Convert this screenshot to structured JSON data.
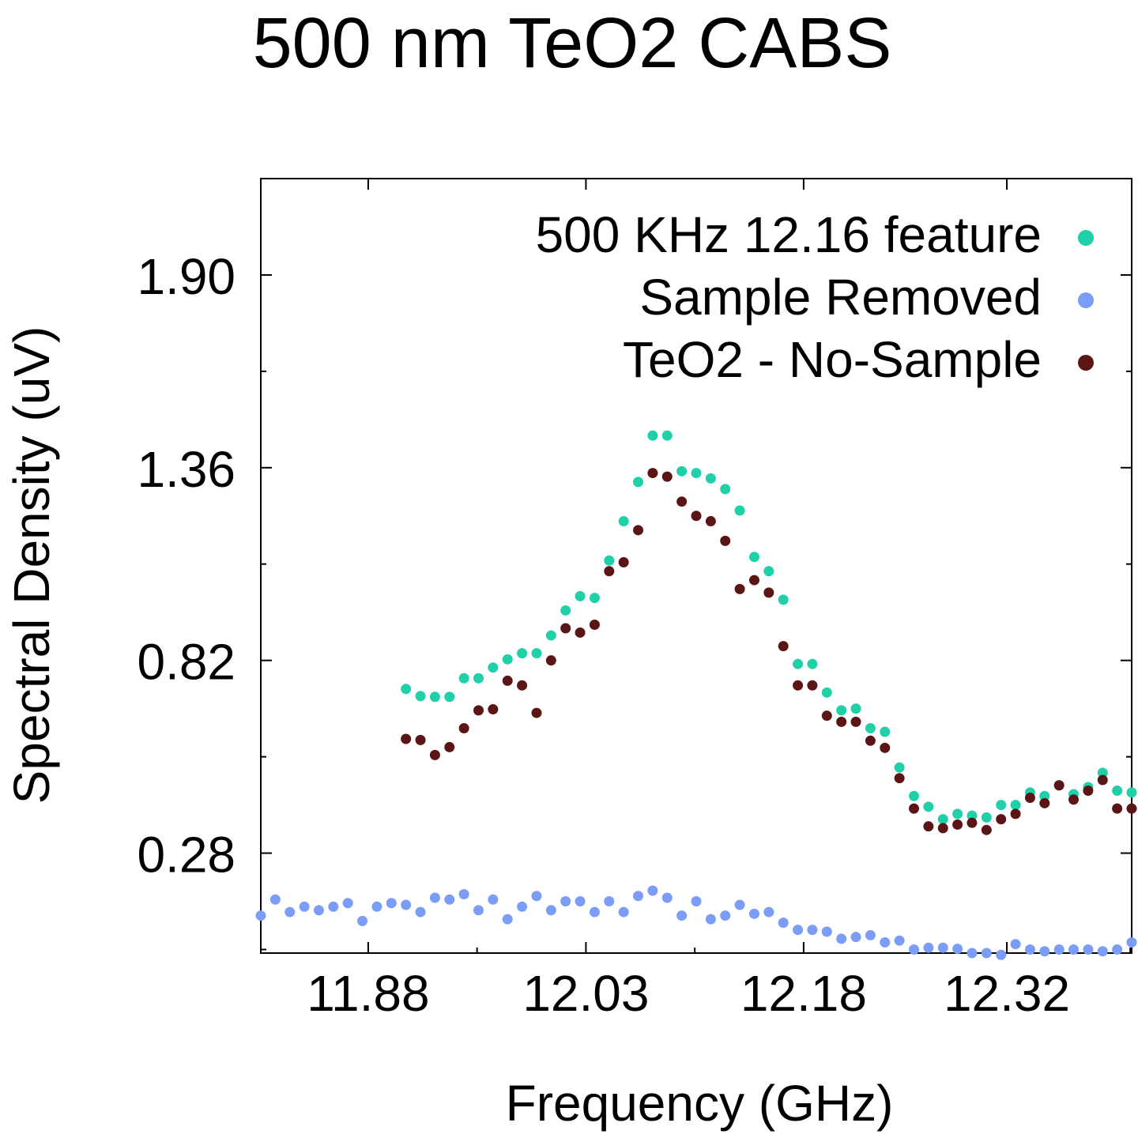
{
  "chart_data": {
    "type": "scatter",
    "title": "500 nm TeO2 CABS",
    "xlabel": "Frequency (GHz)",
    "ylabel": "Spectral Density (uV)",
    "xlim": [
      11.806,
      12.406
    ],
    "ylim": [
      0.0,
      2.17
    ],
    "xticks": [
      "11.88",
      "12.03",
      "12.18",
      "12.32"
    ],
    "xtick_values": [
      11.88,
      12.03,
      12.18,
      12.32
    ],
    "yticks": [
      "0.28",
      "0.82",
      "1.36",
      "1.90"
    ],
    "ytick_values": [
      0.28,
      0.82,
      1.36,
      1.9
    ],
    "grid": false,
    "legend_position": "top-right",
    "series": [
      {
        "name": "500 KHz 12.16 feature",
        "color": "#20d0a8",
        "x": [
          11.906,
          11.916,
          11.926,
          11.936,
          11.946,
          11.956,
          11.966,
          11.976,
          11.986,
          11.996,
          12.006,
          12.016,
          12.026,
          12.036,
          12.046,
          12.056,
          12.066,
          12.076,
          12.086,
          12.096,
          12.106,
          12.116,
          12.126,
          12.136,
          12.146,
          12.156,
          12.166,
          12.176,
          12.186,
          12.196,
          12.206,
          12.216,
          12.226,
          12.236,
          12.246,
          12.256,
          12.266,
          12.276,
          12.286,
          12.296,
          12.306,
          12.316,
          12.326,
          12.336,
          12.346,
          12.356,
          12.366,
          12.376,
          12.386,
          12.396,
          12.406
        ],
        "y": [
          0.74,
          0.72,
          0.718,
          0.718,
          0.77,
          0.77,
          0.8,
          0.823,
          0.84,
          0.84,
          0.89,
          0.96,
          1.0,
          0.995,
          1.1,
          1.21,
          1.32,
          1.45,
          1.45,
          1.35,
          1.345,
          1.33,
          1.3,
          1.24,
          1.11,
          1.07,
          0.99,
          0.81,
          0.81,
          0.73,
          0.68,
          0.685,
          0.63,
          0.62,
          0.52,
          0.44,
          0.41,
          0.375,
          0.39,
          0.385,
          0.38,
          0.415,
          0.415,
          0.45,
          0.44,
          0.47,
          0.445,
          0.465,
          0.505,
          0.455,
          0.45
        ]
      },
      {
        "name": "Sample Removed",
        "color": "#7b9cf7",
        "x": [
          11.806,
          11.816,
          11.826,
          11.836,
          11.846,
          11.856,
          11.866,
          11.876,
          11.886,
          11.896,
          11.906,
          11.916,
          11.926,
          11.936,
          11.946,
          11.956,
          11.966,
          11.976,
          11.986,
          11.996,
          12.006,
          12.016,
          12.026,
          12.036,
          12.046,
          12.056,
          12.066,
          12.076,
          12.086,
          12.096,
          12.106,
          12.116,
          12.126,
          12.136,
          12.146,
          12.156,
          12.166,
          12.176,
          12.186,
          12.196,
          12.206,
          12.216,
          12.226,
          12.236,
          12.246,
          12.256,
          12.266,
          12.276,
          12.286,
          12.296,
          12.306,
          12.316,
          12.326,
          12.336,
          12.346,
          12.356,
          12.366,
          12.376,
          12.386,
          12.396,
          12.406
        ],
        "y": [
          0.105,
          0.15,
          0.115,
          0.13,
          0.12,
          0.13,
          0.14,
          0.09,
          0.13,
          0.14,
          0.135,
          0.115,
          0.155,
          0.15,
          0.165,
          0.12,
          0.15,
          0.095,
          0.13,
          0.16,
          0.12,
          0.145,
          0.145,
          0.115,
          0.145,
          0.115,
          0.16,
          0.175,
          0.155,
          0.105,
          0.145,
          0.095,
          0.105,
          0.135,
          0.11,
          0.115,
          0.085,
          0.065,
          0.065,
          0.06,
          0.04,
          0.045,
          0.05,
          0.03,
          0.035,
          0.01,
          0.015,
          0.015,
          0.012,
          0.0,
          0.0,
          -0.005,
          0.025,
          0.01,
          0.005,
          0.01,
          0.01,
          0.01,
          0.005,
          0.01,
          0.03
        ]
      },
      {
        "name": "TeO2 - No-Sample",
        "color": "#5c1515",
        "x": [
          11.906,
          11.916,
          11.926,
          11.936,
          11.946,
          11.956,
          11.966,
          11.976,
          11.986,
          11.996,
          12.006,
          12.016,
          12.026,
          12.036,
          12.046,
          12.056,
          12.066,
          12.076,
          12.086,
          12.096,
          12.106,
          12.116,
          12.126,
          12.136,
          12.146,
          12.156,
          12.166,
          12.176,
          12.186,
          12.196,
          12.206,
          12.216,
          12.226,
          12.236,
          12.246,
          12.256,
          12.266,
          12.276,
          12.286,
          12.296,
          12.306,
          12.316,
          12.326,
          12.336,
          12.346,
          12.356,
          12.366,
          12.376,
          12.386,
          12.396,
          12.406
        ],
        "y": [
          0.6,
          0.597,
          0.555,
          0.577,
          0.63,
          0.68,
          0.683,
          0.763,
          0.75,
          0.673,
          0.82,
          0.91,
          0.898,
          0.92,
          1.07,
          1.095,
          1.185,
          1.345,
          1.335,
          1.265,
          1.225,
          1.21,
          1.155,
          1.02,
          1.045,
          1.01,
          0.86,
          0.75,
          0.75,
          0.665,
          0.648,
          0.648,
          0.595,
          0.575,
          0.49,
          0.405,
          0.355,
          0.35,
          0.36,
          0.365,
          0.345,
          0.375,
          0.39,
          0.435,
          0.42,
          0.47,
          0.43,
          0.455,
          0.485,
          0.405,
          0.405
        ]
      }
    ]
  }
}
